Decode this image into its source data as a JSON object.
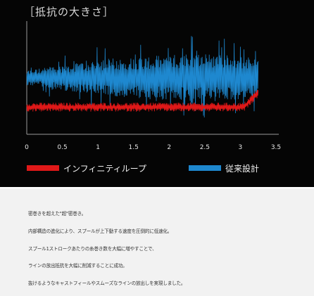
{
  "chart_data": {
    "type": "line",
    "title": "［抵抗の大きさ］",
    "xlabel": "",
    "ylabel": "",
    "x_ticks": [
      "0",
      "0.5",
      "1",
      "1.5",
      "2",
      "2.5",
      "3",
      "3.5"
    ],
    "xlim": [
      0,
      3.5
    ],
    "ylim": [
      0,
      1
    ],
    "grid": false,
    "legend_position": "bottom",
    "series": [
      {
        "name": "インフィニティループ",
        "color": "#e01818",
        "baseline": 0.24,
        "amplitude": 0.04,
        "end_rise": 0.13,
        "x_range": [
          0,
          3.25
        ]
      },
      {
        "name": "従来設計",
        "color": "#1e88cf",
        "baseline": 0.5,
        "amplitude_profile": [
          {
            "x": 0,
            "amp": 0.12
          },
          {
            "x": 0.6,
            "amp": 0.22
          },
          {
            "x": 1.2,
            "amp": 0.3
          },
          {
            "x": 1.9,
            "amp": 0.36
          },
          {
            "x": 2.5,
            "amp": 0.4
          },
          {
            "x": 3.25,
            "amp": 0.32
          }
        ],
        "x_range": [
          0,
          3.25
        ]
      }
    ]
  },
  "notes": [
    "密巻きを超えた\"超\"密巻き。",
    "内部構造の進化により、スプールが上下動する速度を圧倒的に低速化。",
    "スプール1ストロークあたりの糸巻き数を大幅に増やすことで、",
    "ラインの放出抵抗を大幅に削減することに成功。",
    "抜けるようなキャストフィールやスムーズなラインの放出しを実現しました。"
  ]
}
